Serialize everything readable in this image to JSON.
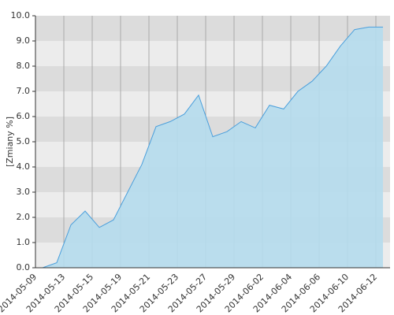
{
  "chart_data": {
    "type": "area",
    "y_label": "[Zmiany %]",
    "categories": [
      "2014-05-09",
      null,
      "2014-05-13",
      null,
      "2014-05-15",
      null,
      "2014-05-19",
      null,
      "2014-05-21",
      null,
      "2014-05-23",
      null,
      "2014-05-27",
      null,
      "2014-05-29",
      null,
      "2014-06-02",
      null,
      "2014-06-04",
      null,
      "2014-06-06",
      null,
      "2014-06-10",
      null,
      "2014-06-12"
    ],
    "values": [
      0,
      0.2,
      1.7,
      2.25,
      1.6,
      1.9,
      3.0,
      4.1,
      5.6,
      5.8,
      6.1,
      6.85,
      5.2,
      5.4,
      5.8,
      5.55,
      6.45,
      6.3,
      7.0,
      7.4,
      8.0,
      8.8,
      9.45,
      9.55,
      9.55
    ],
    "color": "#4a9fdc",
    "fill": "#b5dbed",
    "ylim": [
      0,
      10
    ],
    "yticks": [
      {
        "value": 0,
        "label": "0.0"
      },
      {
        "value": 1,
        "label": "1.0"
      },
      {
        "value": 2,
        "label": "2.0"
      },
      {
        "value": 3,
        "label": "3.0"
      },
      {
        "value": 4,
        "label": "4.0"
      },
      {
        "value": 5,
        "label": "5.0"
      },
      {
        "value": 6,
        "label": "6.0"
      },
      {
        "value": 7,
        "label": "7.0"
      },
      {
        "value": 8,
        "label": "8.0"
      },
      {
        "value": 9,
        "label": "9.0"
      },
      {
        "value": 10,
        "label": "10.0"
      }
    ],
    "grid": true
  }
}
